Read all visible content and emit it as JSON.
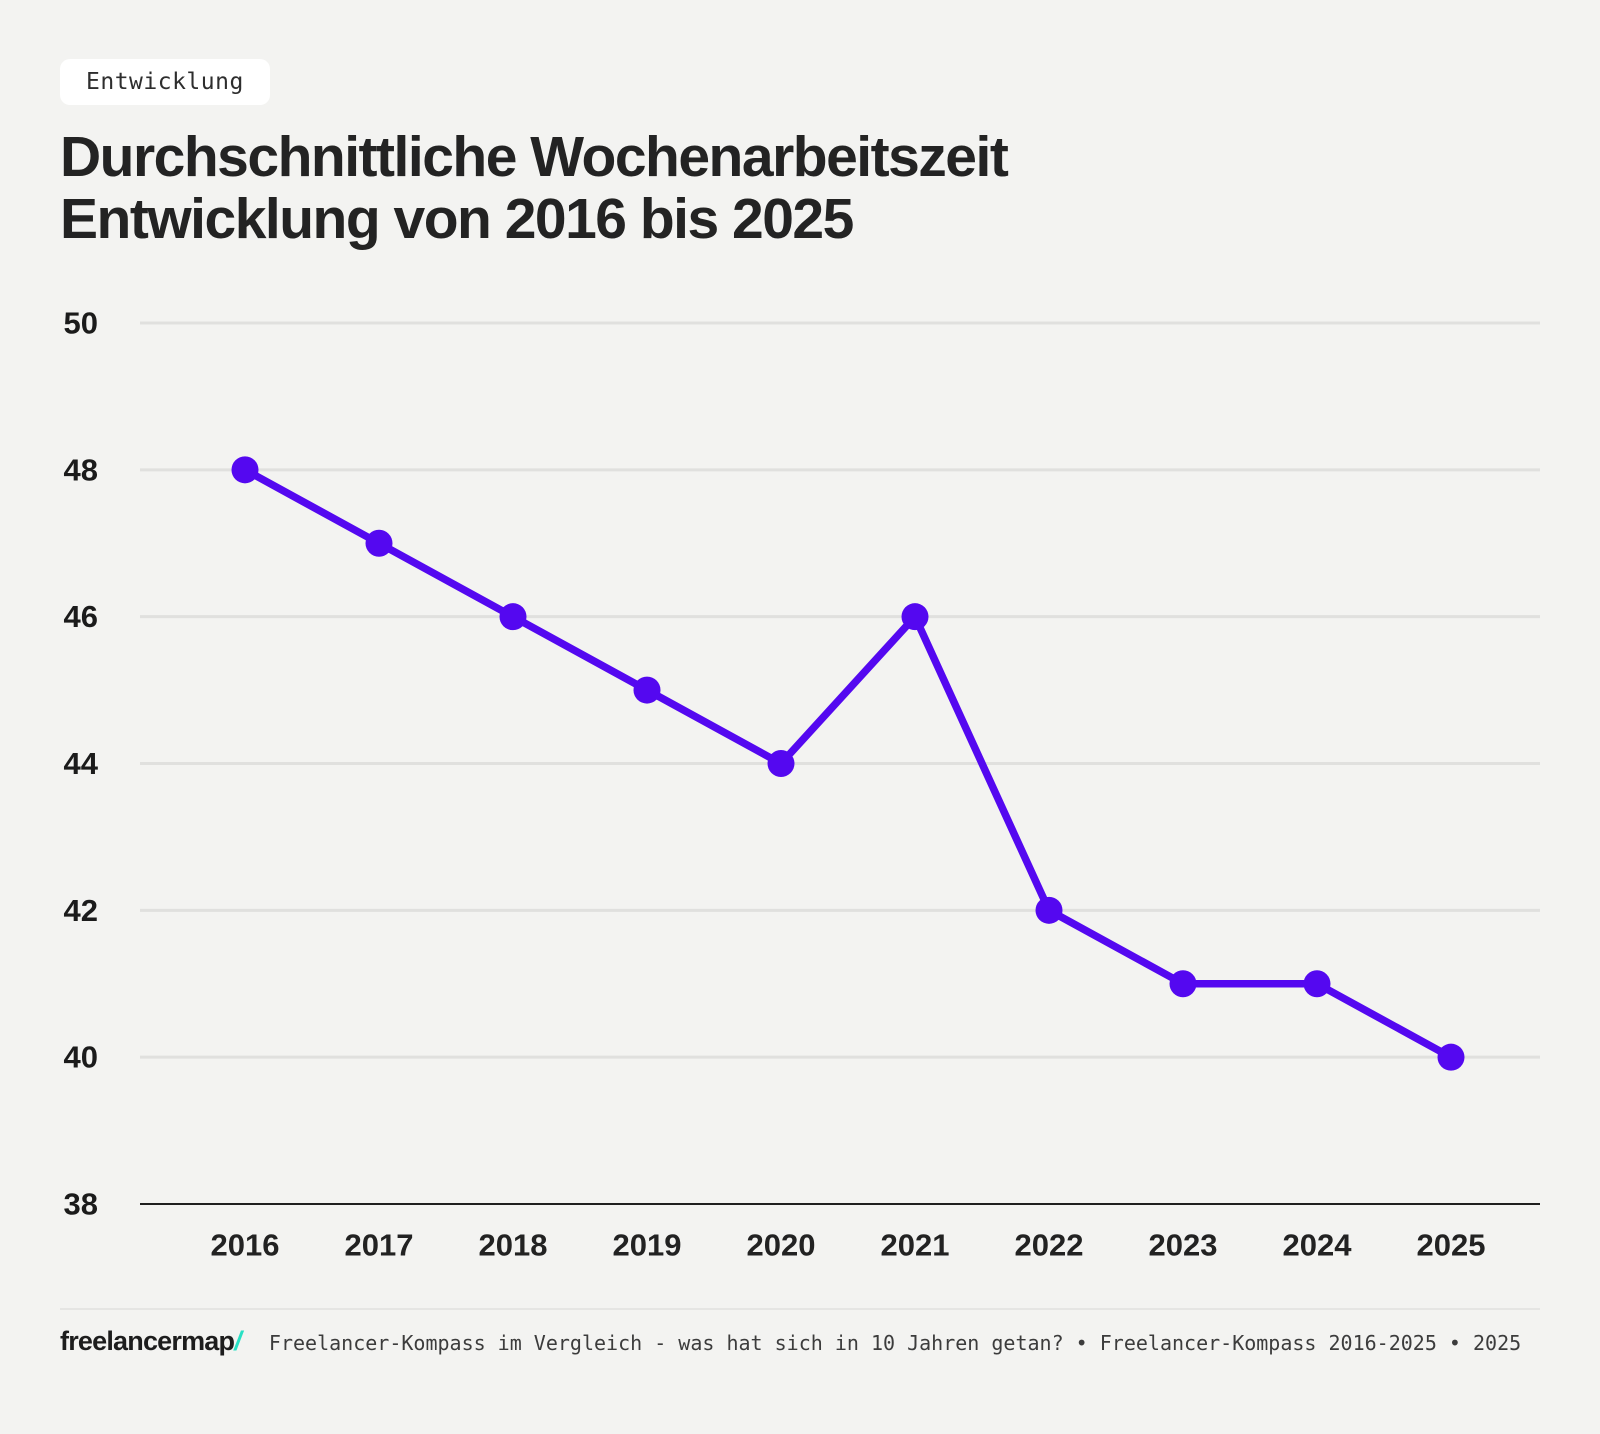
{
  "badge": {
    "label": "Entwicklung"
  },
  "title": {
    "full": "Durchschnittliche Wochenarbeitszeit Entwicklung von 2016 bis 2025",
    "line1": "Durchschnittliche Wochenarbeitszeit",
    "line2": "Entwicklung von 2016 bis 2025"
  },
  "chart_data": {
    "type": "line",
    "title": "Durchschnittliche Wochenarbeitszeit Entwicklung von 2016 bis 2025",
    "categories": [
      "2016",
      "2017",
      "2018",
      "2019",
      "2020",
      "2021",
      "2022",
      "2023",
      "2024",
      "2025"
    ],
    "values": [
      48,
      47,
      46,
      45,
      44,
      46,
      42,
      41,
      41,
      40
    ],
    "xlabel": "",
    "ylabel": "",
    "ylim": [
      38,
      50
    ],
    "yticks": [
      38,
      40,
      42,
      44,
      46,
      48,
      50
    ],
    "grid": true,
    "legend": false
  },
  "colors": {
    "line": "#5408f0",
    "background": "#f3f3f1",
    "gridline": "#e0e0de",
    "axis": "#1f1f1f",
    "brand_teal": "#28e0c4"
  },
  "footer": {
    "logo_text": "freelancermap",
    "logo_slash": "/",
    "caption": "Freelancer-Kompass im Vergleich - was hat sich in 10 Jahren getan? • Freelancer-Kompass 2016-2025 • 2025"
  }
}
